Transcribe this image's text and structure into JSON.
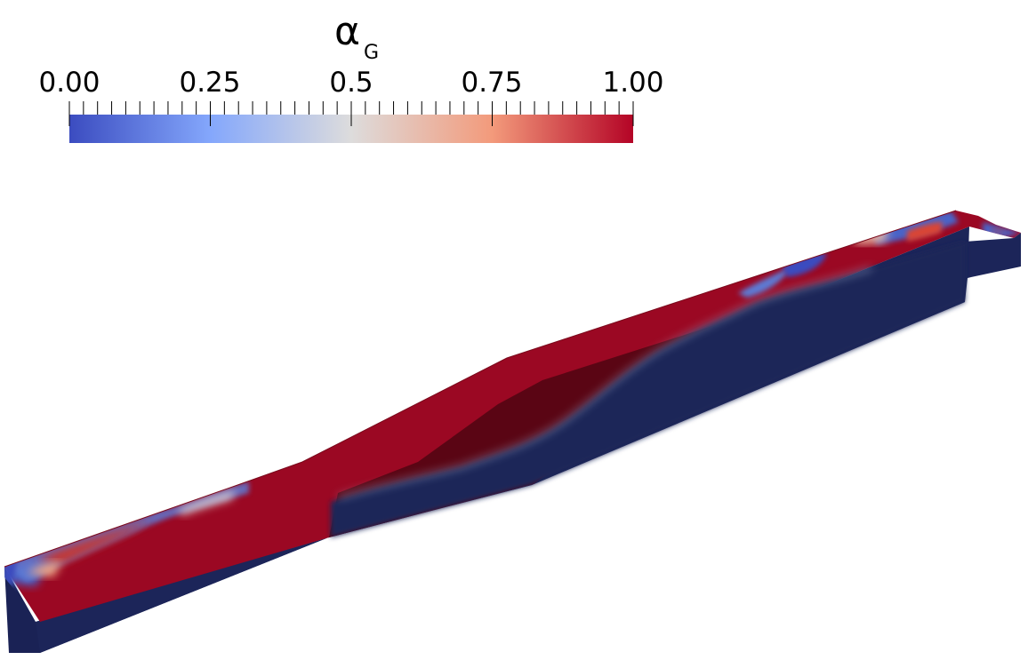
{
  "legend": {
    "title": "α",
    "title_subscript": "G",
    "tick_labels": [
      "0.00",
      "0.25",
      "0.5",
      "0.75",
      "1.00"
    ],
    "range": [
      0,
      1
    ],
    "colormap": "cool-to-warm",
    "colors": {
      "low": "#3b4cc0",
      "mid": "#dddddd",
      "high": "#b40426",
      "base_liquid": "#1c2559",
      "gas_top": "#9b0823",
      "gas_shadow": "#5a0514"
    }
  }
}
